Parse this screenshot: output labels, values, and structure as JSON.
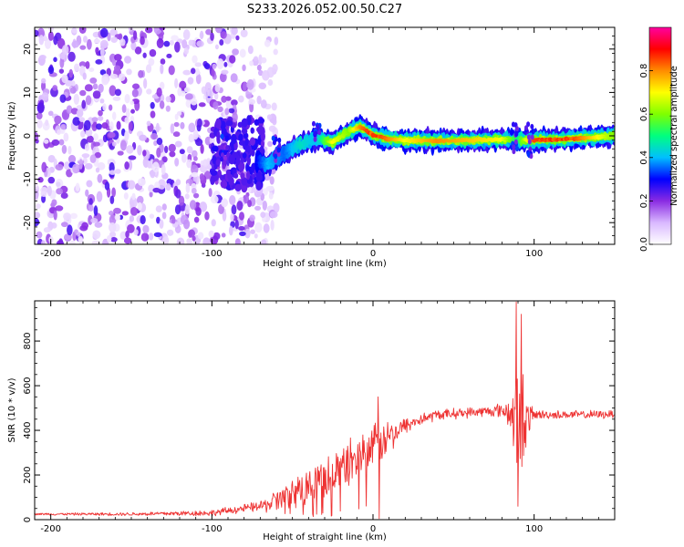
{
  "figure": {
    "title": "S233.2026.052.00.50.C27"
  },
  "chart_data": [
    {
      "type": "heatmap",
      "title": "S233.2026.052.00.50.C27",
      "xlabel": "Height of straight line (km)",
      "ylabel": "Frequency (Hz)",
      "xlim": [
        -210,
        150
      ],
      "ylim": [
        -25,
        25
      ],
      "xticks": [
        -200,
        -100,
        0,
        100
      ],
      "xtick_labels": [
        "-200",
        "-100",
        "0",
        "100"
      ],
      "yticks": [
        -20,
        -10,
        0,
        10,
        20
      ],
      "ytick_labels": [
        "-20",
        "-10",
        "0",
        "10",
        "20"
      ],
      "colorbar": {
        "label": "Normalized spectral amplitude",
        "range": [
          0,
          1
        ],
        "ticks": [
          0.0,
          0.2,
          0.4,
          0.6,
          0.8
        ],
        "tick_labels": [
          "0.0",
          "0.2",
          "0.4",
          "0.6",
          "0.8"
        ],
        "colors": [
          "#ffffff",
          "#d9b8ff",
          "#8a2be2",
          "#0000ff",
          "#00bfff",
          "#00ff7f",
          "#7fff00",
          "#ffff00",
          "#ff8c00",
          "#ff0000",
          "#ff00a0"
        ]
      },
      "ridge": {
        "description": "narrow high-amplitude band near 0 Hz",
        "x": [
          -72,
          -65,
          -55,
          -45,
          -35,
          -25,
          -15,
          -8,
          0,
          10,
          20,
          40,
          60,
          80,
          90,
          100,
          120,
          150
        ],
        "freq_hz": [
          -6,
          -6.5,
          -4,
          -2,
          -0.5,
          -1.5,
          1,
          2,
          0.3,
          -0.8,
          -1,
          -1.2,
          -1,
          -0.8,
          -1,
          -1,
          -0.8,
          0
        ],
        "peak_amplitude": [
          0.3,
          0.4,
          0.35,
          0.45,
          0.4,
          0.7,
          0.6,
          0.8,
          0.9,
          0.8,
          0.7,
          0.8,
          0.75,
          0.7,
          0.5,
          0.85,
          0.9,
          0.6
        ]
      },
      "noise_region": {
        "x_range": [
          -210,
          -70
        ],
        "amplitude": "low (0.0-0.25), scattered"
      }
    },
    {
      "type": "line",
      "xlabel": "Height of straight line (km)",
      "ylabel": "SNR (10 * v/v)",
      "xlim": [
        -210,
        150
      ],
      "ylim": [
        0,
        980
      ],
      "xticks": [
        -200,
        -100,
        0,
        100
      ],
      "xtick_labels": [
        "-200",
        "-100",
        "0",
        "100"
      ],
      "yticks": [
        0,
        200,
        400,
        600,
        800
      ],
      "ytick_labels": [
        "0",
        "200",
        "400",
        "600",
        "800"
      ],
      "color": "#ee3333",
      "series": [
        {
          "name": "SNR",
          "x": [
            -210,
            -150,
            -100,
            -80,
            -70,
            -60,
            -50,
            -40,
            -30,
            -20,
            -10,
            0,
            10,
            20,
            30,
            40,
            50,
            60,
            70,
            80,
            85,
            88,
            90,
            92,
            95,
            100,
            110,
            120,
            130,
            140,
            150
          ],
          "y": [
            25,
            25,
            30,
            50,
            60,
            80,
            110,
            150,
            190,
            230,
            280,
            320,
            370,
            420,
            450,
            470,
            475,
            480,
            485,
            490,
            480,
            450,
            430,
            420,
            440,
            470,
            470,
            470,
            470,
            470,
            475
          ],
          "noise": [
            5,
            8,
            15,
            20,
            25,
            60,
            80,
            100,
            100,
            110,
            110,
            110,
            80,
            40,
            30,
            25,
            25,
            25,
            25,
            35,
            80,
            200,
            300,
            200,
            120,
            25,
            20,
            20,
            20,
            20,
            20
          ]
        }
      ],
      "spikes": [
        {
          "x": 3,
          "y": 550
        },
        {
          "x": 4,
          "y": 5
        },
        {
          "x": 89,
          "y": 975
        },
        {
          "x": 90,
          "y": 60
        },
        {
          "x": 92,
          "y": 920
        },
        {
          "x": 93,
          "y": 650
        }
      ]
    }
  ]
}
